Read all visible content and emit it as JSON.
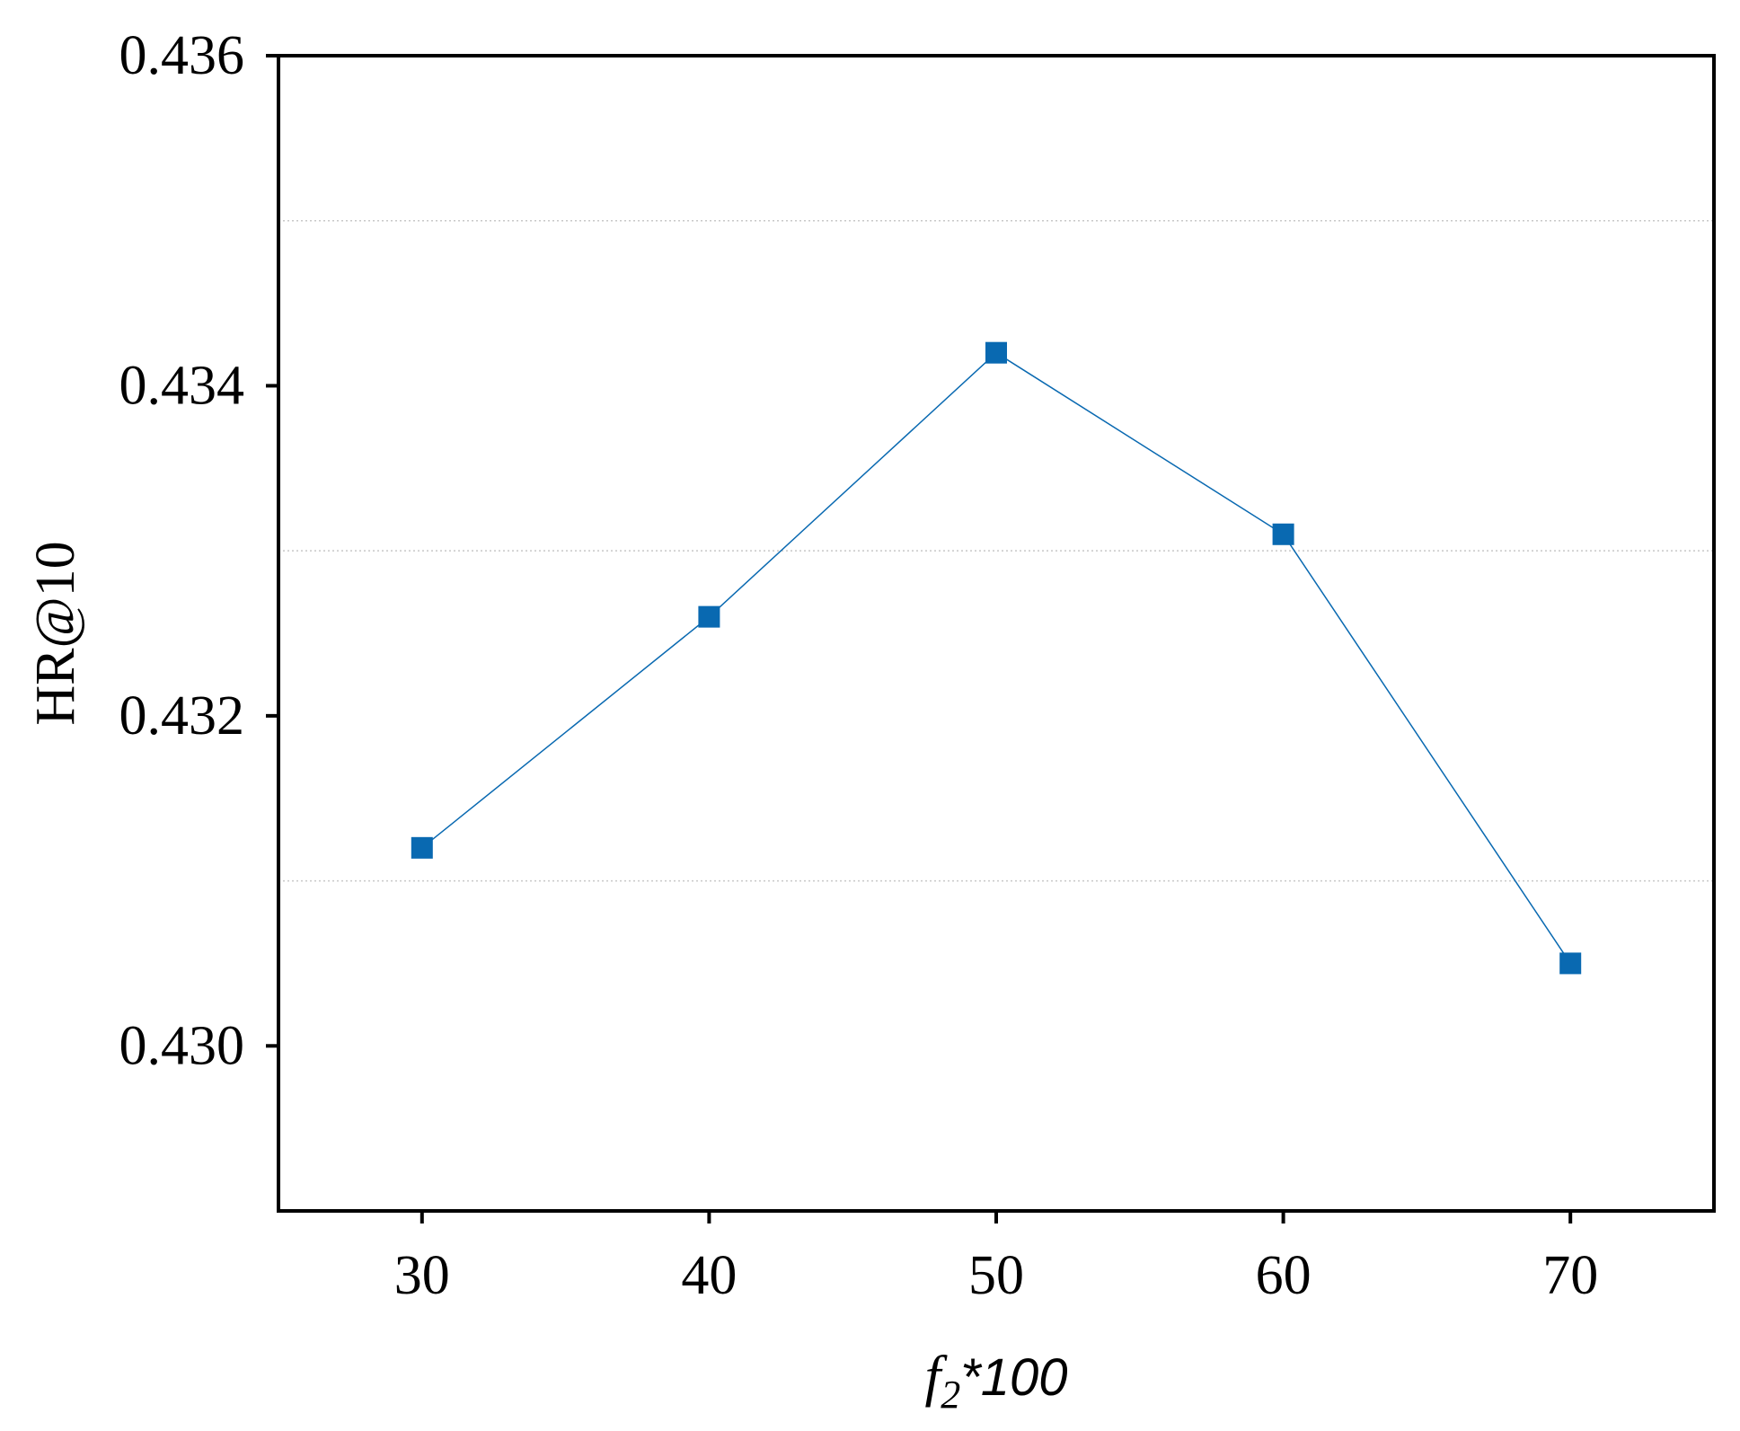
{
  "chart_data": {
    "type": "line",
    "title": "",
    "xlabel": {
      "var": "f",
      "sub": "2",
      "suffix": "*100"
    },
    "ylabel": "HR@10",
    "x": [
      30,
      40,
      50,
      60,
      70
    ],
    "x_tick_labels": [
      "30",
      "40",
      "50",
      "60",
      "70"
    ],
    "xlim": [
      25,
      75
    ],
    "ylim": [
      0.429,
      0.436
    ],
    "y_ticks": [
      0.43,
      0.432,
      0.434,
      0.436
    ],
    "y_tick_labels": [
      "0.430",
      "0.432",
      "0.434",
      "0.436"
    ],
    "y_gridlines": [
      0.431,
      0.433,
      0.435
    ],
    "grid": "horizontal dotted at minor intervals",
    "series": [
      {
        "values": [
          0.4312,
          0.4326,
          0.4342,
          0.4331,
          0.4305
        ],
        "color": "#0969b1",
        "marker": "square"
      }
    ]
  }
}
